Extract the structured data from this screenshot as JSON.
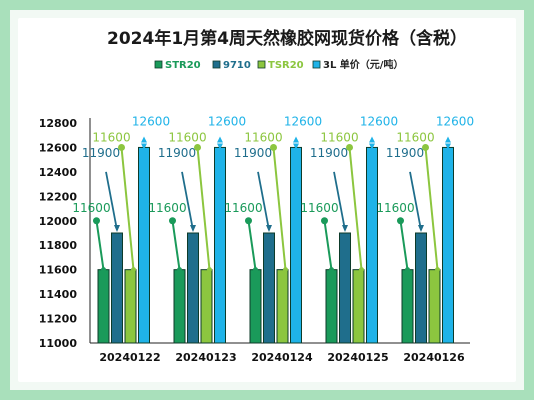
{
  "chart_data": {
    "type": "bar",
    "title": "2024年1月第4周天然橡胶网现货价格（含税）",
    "categories": [
      "20240122",
      "20240123",
      "20240124",
      "20240125",
      "20240126"
    ],
    "series": [
      {
        "name": "STR20",
        "color": "#1a9a5a",
        "values": [
          11600,
          11600,
          11600,
          11600,
          11600
        ]
      },
      {
        "name": "9710",
        "color": "#1f6e8c",
        "values": [
          11900,
          11900,
          11900,
          11900,
          11900
        ]
      },
      {
        "name": "TSR20",
        "color": "#8cc63f",
        "values": [
          11600,
          11600,
          11600,
          11600,
          11600
        ]
      },
      {
        "name": "3L 单价（元/吨）",
        "color": "#1fb3e8",
        "values": [
          12600,
          12600,
          12600,
          12600,
          12600
        ]
      }
    ],
    "label_values": [
      {
        "series": 0,
        "label": "11600",
        "value": 12000
      },
      {
        "series": 1,
        "label": "11900",
        "value": 12400
      },
      {
        "series": 2,
        "label": "11600",
        "value": 12600
      },
      {
        "series": 3,
        "label": "12600",
        "value": 12680
      }
    ],
    "yticks": [
      11000,
      11200,
      11400,
      11600,
      11800,
      12000,
      12200,
      12400,
      12600,
      12800
    ],
    "ylim": [
      11000,
      12800
    ],
    "grid": false,
    "legend": "top"
  }
}
